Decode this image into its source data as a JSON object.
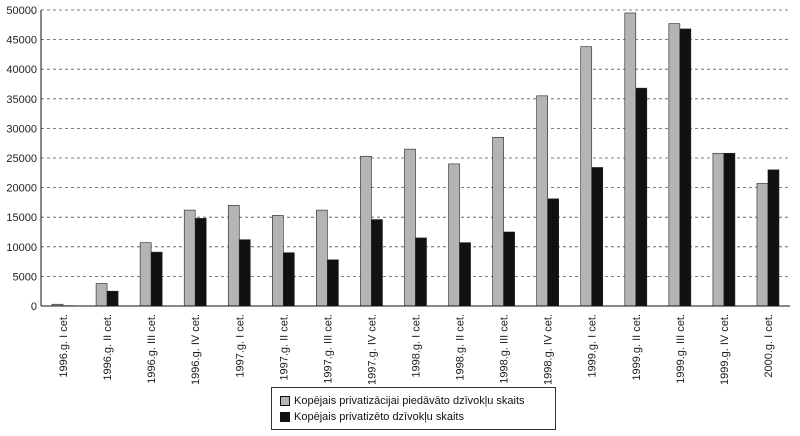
{
  "chart_data": {
    "type": "bar",
    "title": "",
    "xlabel": "",
    "ylabel": "",
    "ylim": [
      0,
      50000
    ],
    "yticks": [
      0,
      5000,
      10000,
      15000,
      20000,
      25000,
      30000,
      35000,
      40000,
      45000,
      50000
    ],
    "grid": "horizontal dashed",
    "legend_position": "bottom-center",
    "categories": [
      "1996.g. I cet.",
      "1996.g. II cet.",
      "1996.g. III cet.",
      "1996.g. IV cet.",
      "1997.g. I cet.",
      "1997.g. II cet.",
      "1997.g. III cet.",
      "1997.g. IV cet.",
      "1998.g. I cet.",
      "1998.g. II cet.",
      "1998.g. III cet.",
      "1998.g. IV cet.",
      "1999.g. I cet.",
      "1999.g. II cet.",
      "1999.g. III cet.",
      "1999.g. IV cet.",
      "2000.g. I cet."
    ],
    "series": [
      {
        "name": "Kopējais privatizācijai piedāvāto dzīvokļu skaits",
        "color": "#b4b4b4",
        "values": [
          300,
          3800,
          10700,
          16200,
          17000,
          15300,
          16200,
          25300,
          26500,
          24000,
          28500,
          35500,
          43800,
          49500,
          47700,
          25800,
          20700
        ]
      },
      {
        "name": "Kopējais privatizēto dzīvokļu skaits",
        "color": "#111111",
        "values": [
          50,
          2500,
          9100,
          14800,
          11200,
          9000,
          7800,
          14600,
          11500,
          10700,
          12500,
          18100,
          23400,
          36800,
          46800,
          25800,
          23000
        ]
      }
    ]
  }
}
